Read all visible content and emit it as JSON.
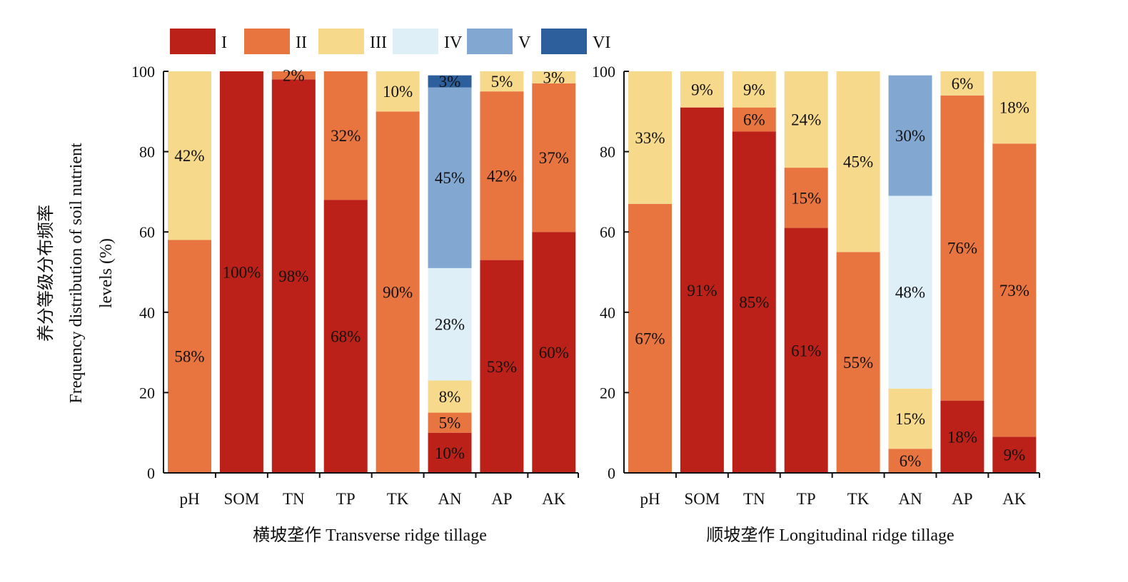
{
  "colors": {
    "I": "#bb2119",
    "II": "#e87440",
    "III": "#f7d98b",
    "IV": "#deeff7",
    "V": "#82a8d2",
    "VI": "#2c5f9b"
  },
  "legend": [
    "I",
    "II",
    "III",
    "IV",
    "V",
    "VI"
  ],
  "y_title_lines": [
    "养分等级分布频率",
    "Frequency distribution of soil nutrient",
    "levels (%)"
  ],
  "chart_data": [
    {
      "type": "bar",
      "stacked": true,
      "xlabel": "横坡垄作 Transverse ridge tillage",
      "ylim": [
        0,
        100
      ],
      "yticks": [
        0,
        20,
        40,
        60,
        80,
        100
      ],
      "categories": [
        "pH",
        "SOM",
        "TN",
        "TP",
        "TK",
        "AN",
        "AP",
        "AK"
      ],
      "series": [
        {
          "name": "I",
          "values": [
            0,
            100,
            98,
            68,
            0,
            10,
            53,
            60
          ],
          "labels": [
            "",
            "100%",
            "98%",
            "68%",
            "",
            "10%",
            "53%",
            "60%"
          ]
        },
        {
          "name": "II",
          "values": [
            58,
            0,
            2,
            32,
            90,
            5,
            42,
            37
          ],
          "labels": [
            "58%",
            "",
            "2%",
            "32%",
            "90%",
            "5%",
            "42%",
            "37%"
          ]
        },
        {
          "name": "III",
          "values": [
            42,
            0,
            0,
            0,
            10,
            8,
            5,
            3
          ],
          "labels": [
            "42%",
            "",
            "",
            "",
            "10%",
            "8%",
            "5%",
            "3%"
          ]
        },
        {
          "name": "IV",
          "values": [
            0,
            0,
            0,
            0,
            0,
            28,
            0,
            0
          ],
          "labels": [
            "",
            "",
            "",
            "",
            "",
            "28%",
            "",
            ""
          ]
        },
        {
          "name": "V",
          "values": [
            0,
            0,
            0,
            0,
            0,
            45,
            0,
            0
          ],
          "labels": [
            "",
            "",
            "",
            "",
            "",
            "45%",
            "",
            ""
          ]
        },
        {
          "name": "VI",
          "values": [
            0,
            0,
            0,
            0,
            0,
            3,
            0,
            0
          ],
          "labels": [
            "",
            "",
            "",
            "",
            "",
            "3%",
            "",
            ""
          ]
        }
      ]
    },
    {
      "type": "bar",
      "stacked": true,
      "xlabel": "顺坡垄作 Longitudinal ridge tillage",
      "ylim": [
        0,
        100
      ],
      "yticks": [
        0,
        20,
        40,
        60,
        80,
        100
      ],
      "categories": [
        "pH",
        "SOM",
        "TN",
        "TP",
        "TK",
        "AN",
        "AP",
        "AK"
      ],
      "series": [
        {
          "name": "I",
          "values": [
            0,
            91,
            85,
            61,
            0,
            0,
            18,
            9
          ],
          "labels": [
            "",
            "91%",
            "85%",
            "61%",
            "",
            "",
            "18%",
            "9%"
          ]
        },
        {
          "name": "II",
          "values": [
            67,
            0,
            6,
            15,
            55,
            6,
            76,
            73
          ],
          "labels": [
            "67%",
            "",
            "6%",
            "15%",
            "55%",
            "6%",
            "76%",
            "73%"
          ]
        },
        {
          "name": "III",
          "values": [
            33,
            9,
            9,
            24,
            45,
            15,
            6,
            18
          ],
          "labels": [
            "33%",
            "9%",
            "9%",
            "24%",
            "45%",
            "15%",
            "6%",
            "18%"
          ]
        },
        {
          "name": "IV",
          "values": [
            0,
            0,
            0,
            0,
            0,
            48,
            0,
            0
          ],
          "labels": [
            "",
            "",
            "",
            "",
            "",
            "48%",
            "",
            ""
          ]
        },
        {
          "name": "V",
          "values": [
            0,
            0,
            0,
            0,
            0,
            30,
            0,
            0
          ],
          "labels": [
            "",
            "",
            "",
            "",
            "",
            "30%",
            "",
            ""
          ]
        },
        {
          "name": "VI",
          "values": [
            0,
            0,
            0,
            0,
            0,
            0,
            0,
            0
          ],
          "labels": [
            "",
            "",
            "",
            "",
            "",
            "",
            "",
            ""
          ]
        }
      ]
    }
  ]
}
